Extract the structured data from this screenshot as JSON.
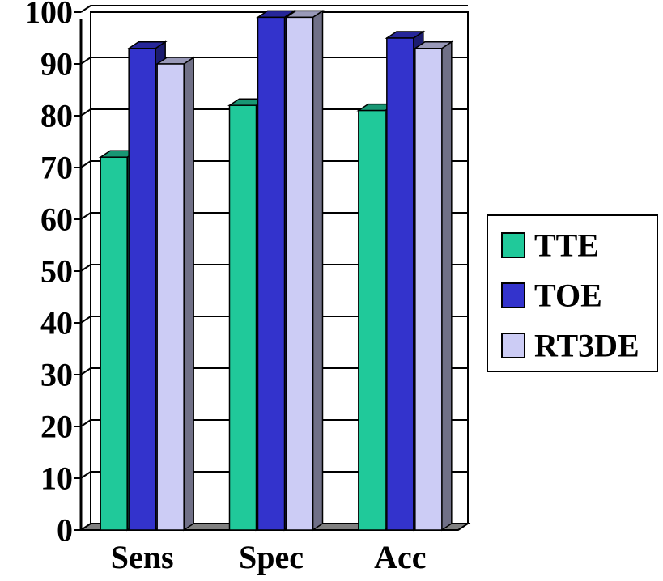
{
  "chart_data": {
    "type": "bar",
    "style": "3d-clustered-column",
    "categories": [
      "Sens",
      "Spec",
      "Acc"
    ],
    "series": [
      {
        "name": "TTE",
        "values": [
          72,
          82,
          81
        ],
        "color": "#20c99a"
      },
      {
        "name": "TOE",
        "values": [
          93,
          99,
          95
        ],
        "color": "#3333cc"
      },
      {
        "name": "RT3DE",
        "values": [
          90,
          99,
          93
        ],
        "color": "#ccccf5"
      }
    ],
    "ylim": [
      0,
      100
    ],
    "yticks": [
      "0",
      "10",
      "20",
      "30",
      "40",
      "50",
      "60",
      "70",
      "80",
      "90",
      "100"
    ],
    "grid": true,
    "legend_position": "right",
    "title": "",
    "xlabel": "",
    "ylabel": ""
  }
}
